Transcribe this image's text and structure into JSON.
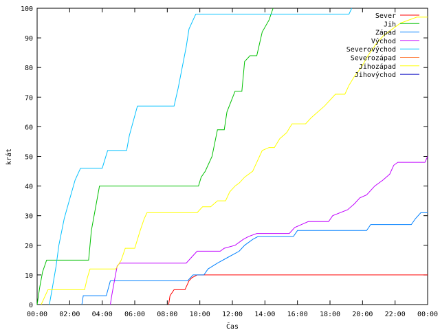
{
  "chart_data": {
    "type": "line",
    "title": "",
    "xlabel": "Čas",
    "ylabel": "krát",
    "xlim": [
      "00:00",
      "24:00"
    ],
    "ylim": [
      0,
      100
    ],
    "x_ticks": [
      "00:00",
      "02:00",
      "04:00",
      "06:00",
      "08:00",
      "10:00",
      "12:00",
      "14:00",
      "16:00",
      "18:00",
      "20:00",
      "22:00",
      "00:00"
    ],
    "y_ticks": [
      0,
      10,
      20,
      30,
      40,
      50,
      60,
      70,
      80,
      90,
      100
    ],
    "grid": false,
    "legend_position": "top-right",
    "series": [
      {
        "name": "Sever",
        "color": "#ff0000",
        "points": [
          [
            "08:05",
            0
          ],
          [
            "08:10",
            3
          ],
          [
            "08:25",
            5
          ],
          [
            "09:05",
            5
          ],
          [
            "09:20",
            8
          ],
          [
            "09:30",
            9
          ],
          [
            "09:50",
            10
          ],
          [
            "24:00",
            10
          ]
        ]
      },
      {
        "name": "Jih",
        "color": "#00c000",
        "points": [
          [
            "00:00",
            0
          ],
          [
            "00:10",
            6
          ],
          [
            "00:20",
            11
          ],
          [
            "00:35",
            15
          ],
          [
            "03:10",
            15
          ],
          [
            "03:20",
            25
          ],
          [
            "03:40",
            35
          ],
          [
            "03:50",
            40
          ],
          [
            "09:55",
            40
          ],
          [
            "10:05",
            43
          ],
          [
            "10:20",
            45
          ],
          [
            "10:45",
            50
          ],
          [
            "11:05",
            59
          ],
          [
            "11:30",
            59
          ],
          [
            "11:40",
            65
          ],
          [
            "12:10",
            72
          ],
          [
            "12:35",
            72
          ],
          [
            "12:45",
            82
          ],
          [
            "13:05",
            84
          ],
          [
            "13:30",
            84
          ],
          [
            "13:50",
            92
          ],
          [
            "14:15",
            96
          ],
          [
            "14:30",
            100
          ]
        ]
      },
      {
        "name": "Západ",
        "color": "#0080ff",
        "points": [
          [
            "02:45",
            0
          ],
          [
            "02:50",
            3
          ],
          [
            "04:15",
            3
          ],
          [
            "04:30",
            8
          ],
          [
            "09:15",
            8
          ],
          [
            "09:35",
            10
          ],
          [
            "10:15",
            10
          ],
          [
            "10:30",
            12
          ],
          [
            "11:05",
            14
          ],
          [
            "11:45",
            16
          ],
          [
            "12:25",
            18
          ],
          [
            "12:45",
            20
          ],
          [
            "13:15",
            22
          ],
          [
            "13:35",
            23
          ],
          [
            "15:45",
            23
          ],
          [
            "16:00",
            25
          ],
          [
            "20:15",
            25
          ],
          [
            "20:30",
            27
          ],
          [
            "23:00",
            27
          ],
          [
            "23:15",
            29
          ],
          [
            "23:35",
            31
          ],
          [
            "24:00",
            31
          ]
        ]
      },
      {
        "name": "Východ",
        "color": "#c000ff",
        "points": [
          [
            "04:30",
            0
          ],
          [
            "04:35",
            3
          ],
          [
            "04:45",
            8
          ],
          [
            "04:55",
            13
          ],
          [
            "05:05",
            14
          ],
          [
            "09:10",
            14
          ],
          [
            "09:30",
            16
          ],
          [
            "09:50",
            18
          ],
          [
            "11:15",
            18
          ],
          [
            "11:30",
            19
          ],
          [
            "12:10",
            20
          ],
          [
            "12:40",
            22
          ],
          [
            "13:00",
            23
          ],
          [
            "13:30",
            24
          ],
          [
            "15:30",
            24
          ],
          [
            "15:50",
            26
          ],
          [
            "16:15",
            27
          ],
          [
            "16:40",
            28
          ],
          [
            "17:55",
            28
          ],
          [
            "18:10",
            30
          ],
          [
            "19:05",
            32
          ],
          [
            "19:30",
            34
          ],
          [
            "19:50",
            36
          ],
          [
            "20:15",
            37
          ],
          [
            "20:45",
            40
          ],
          [
            "21:15",
            42
          ],
          [
            "21:40",
            44
          ],
          [
            "21:55",
            47
          ],
          [
            "22:10",
            48
          ],
          [
            "23:50",
            48
          ],
          [
            "24:00",
            50
          ]
        ]
      },
      {
        "name": "Severovýchod",
        "color": "#00c0ff",
        "points": [
          [
            "00:45",
            0
          ],
          [
            "00:55",
            5
          ],
          [
            "01:10",
            13
          ],
          [
            "01:20",
            20
          ],
          [
            "01:40",
            29
          ],
          [
            "01:55",
            34
          ],
          [
            "02:20",
            42
          ],
          [
            "02:40",
            46
          ],
          [
            "04:00",
            46
          ],
          [
            "04:20",
            52
          ],
          [
            "05:30",
            52
          ],
          [
            "05:40",
            57
          ],
          [
            "05:55",
            62
          ],
          [
            "06:10",
            67
          ],
          [
            "08:25",
            67
          ],
          [
            "08:40",
            73
          ],
          [
            "08:55",
            80
          ],
          [
            "09:10",
            87
          ],
          [
            "09:20",
            93
          ],
          [
            "09:35",
            96
          ],
          [
            "09:45",
            98
          ],
          [
            "19:10",
            98
          ],
          [
            "19:20",
            100
          ]
        ]
      },
      {
        "name": "Severozápad",
        "color": "#ff8040",
        "points": []
      },
      {
        "name": "Jihozápad",
        "color": "#ffff00",
        "points": [
          [
            "00:15",
            0
          ],
          [
            "00:30",
            3
          ],
          [
            "00:40",
            5
          ],
          [
            "02:55",
            5
          ],
          [
            "03:05",
            9
          ],
          [
            "03:15",
            12
          ],
          [
            "04:50",
            12
          ],
          [
            "05:10",
            15
          ],
          [
            "05:25",
            19
          ],
          [
            "06:00",
            19
          ],
          [
            "06:20",
            25
          ],
          [
            "06:35",
            29
          ],
          [
            "06:45",
            31
          ],
          [
            "09:50",
            31
          ],
          [
            "10:10",
            33
          ],
          [
            "10:40",
            33
          ],
          [
            "11:05",
            35
          ],
          [
            "11:35",
            35
          ],
          [
            "11:50",
            38
          ],
          [
            "12:10",
            40
          ],
          [
            "12:25",
            41
          ],
          [
            "12:45",
            43
          ],
          [
            "13:15",
            45
          ],
          [
            "13:25",
            47
          ],
          [
            "13:50",
            52
          ],
          [
            "14:15",
            53
          ],
          [
            "14:35",
            53
          ],
          [
            "14:55",
            56
          ],
          [
            "15:20",
            58
          ],
          [
            "15:40",
            61
          ],
          [
            "16:30",
            61
          ],
          [
            "16:50",
            63
          ],
          [
            "17:15",
            65
          ],
          [
            "17:40",
            67
          ],
          [
            "18:00",
            69
          ],
          [
            "18:20",
            71
          ],
          [
            "18:55",
            71
          ],
          [
            "19:10",
            74
          ],
          [
            "19:30",
            77
          ],
          [
            "19:55",
            80
          ],
          [
            "20:20",
            84
          ],
          [
            "20:50",
            88
          ],
          [
            "21:20",
            91
          ],
          [
            "21:50",
            93
          ],
          [
            "22:20",
            95
          ],
          [
            "23:20",
            97
          ],
          [
            "24:00",
            97
          ]
        ]
      },
      {
        "name": "Jihovýchod",
        "color": "#0000c0",
        "points": []
      }
    ]
  }
}
